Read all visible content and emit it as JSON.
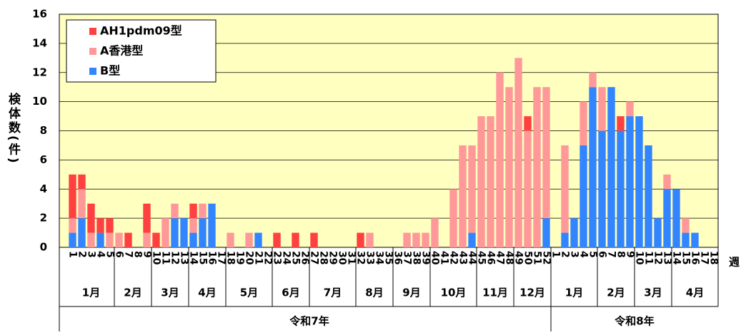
{
  "chart_data": {
    "type": "stacked_bar",
    "y_label": "検体数(件)",
    "x_unit": "週",
    "categories": [
      "1",
      "2",
      "3",
      "4",
      "5",
      "6",
      "7",
      "8",
      "9",
      "10",
      "11",
      "12",
      "13",
      "14",
      "15",
      "16",
      "17",
      "18",
      "19",
      "20",
      "21",
      "22",
      "23",
      "24",
      "25",
      "26",
      "27",
      "28",
      "29",
      "30",
      "31",
      "32",
      "33",
      "34",
      "35",
      "36",
      "37",
      "38",
      "39",
      "40",
      "41",
      "42",
      "43",
      "44",
      "45",
      "46",
      "47",
      "48",
      "49",
      "50",
      "51",
      "52",
      "1",
      "2",
      "3",
      "4",
      "5",
      "6",
      "7",
      "8",
      "9",
      "10",
      "11",
      "12",
      "13",
      "14",
      "15",
      "16",
      "17",
      "18"
    ],
    "series": [
      {
        "name": "AH1pdm09型",
        "color": "#ff4040",
        "values": [
          3,
          1,
          2,
          1,
          1,
          0,
          1,
          0,
          2,
          1,
          0,
          0,
          0,
          1,
          0,
          0,
          0,
          0,
          0,
          0,
          0,
          0,
          1,
          0,
          1,
          0,
          1,
          0,
          0,
          0,
          0,
          1,
          0,
          0,
          0,
          0,
          0,
          0,
          0,
          0,
          0,
          0,
          0,
          0,
          0,
          0,
          0,
          0,
          0,
          1,
          0,
          0,
          0,
          0,
          0,
          0,
          0,
          0,
          0,
          1,
          0,
          0,
          0,
          0,
          0,
          0,
          0,
          0,
          0,
          0
        ]
      },
      {
        "name": "A香港型",
        "color": "#ff9999",
        "values": [
          1,
          2,
          1,
          0,
          1,
          1,
          0,
          0,
          1,
          0,
          2,
          1,
          0,
          1,
          1,
          0,
          0,
          1,
          0,
          1,
          0,
          0,
          0,
          0,
          0,
          0,
          0,
          0,
          0,
          0,
          0,
          0,
          1,
          0,
          0,
          0,
          1,
          1,
          1,
          2,
          0,
          4,
          7,
          6,
          9,
          9,
          12,
          11,
          13,
          8,
          11,
          9,
          0,
          6,
          0,
          3,
          1,
          3,
          0,
          0,
          1,
          0,
          0,
          0,
          1,
          0,
          1,
          0,
          0,
          0
        ]
      },
      {
        "name": "B型",
        "color": "#3385ff",
        "values": [
          1,
          2,
          0,
          1,
          0,
          0,
          0,
          0,
          0,
          0,
          0,
          2,
          2,
          1,
          2,
          3,
          0,
          0,
          0,
          0,
          1,
          0,
          0,
          0,
          0,
          0,
          0,
          0,
          0,
          0,
          0,
          0,
          0,
          0,
          0,
          0,
          0,
          0,
          0,
          0,
          0,
          0,
          0,
          1,
          0,
          0,
          0,
          0,
          0,
          0,
          0,
          2,
          0,
          1,
          2,
          7,
          11,
          8,
          11,
          8,
          9,
          9,
          7,
          2,
          4,
          4,
          1,
          1,
          0,
          0
        ]
      }
    ],
    "months": [
      {
        "label": "1月",
        "span": 5
      },
      {
        "label": "2月",
        "span": 4
      },
      {
        "label": "3月",
        "span": 4
      },
      {
        "label": "4月",
        "span": 4
      },
      {
        "label": "5月",
        "span": 5
      },
      {
        "label": "6月",
        "span": 4
      },
      {
        "label": "7月",
        "span": 5
      },
      {
        "label": "8月",
        "span": 4
      },
      {
        "label": "9月",
        "span": 4
      },
      {
        "label": "10月",
        "span": 5
      },
      {
        "label": "11月",
        "span": 4
      },
      {
        "label": "12月",
        "span": 4
      },
      {
        "label": "1月",
        "span": 5
      },
      {
        "label": "2月",
        "span": 4
      },
      {
        "label": "3月",
        "span": 4
      },
      {
        "label": "4月",
        "span": 5
      }
    ],
    "years": [
      {
        "label": "令和7年",
        "span": 52
      },
      {
        "label": "令和8年",
        "span": 18
      }
    ],
    "ylim": [
      0,
      16
    ],
    "yticks": [
      0,
      2,
      4,
      6,
      8,
      10,
      12,
      14,
      16
    ],
    "grid": true,
    "legend": "upper left"
  }
}
